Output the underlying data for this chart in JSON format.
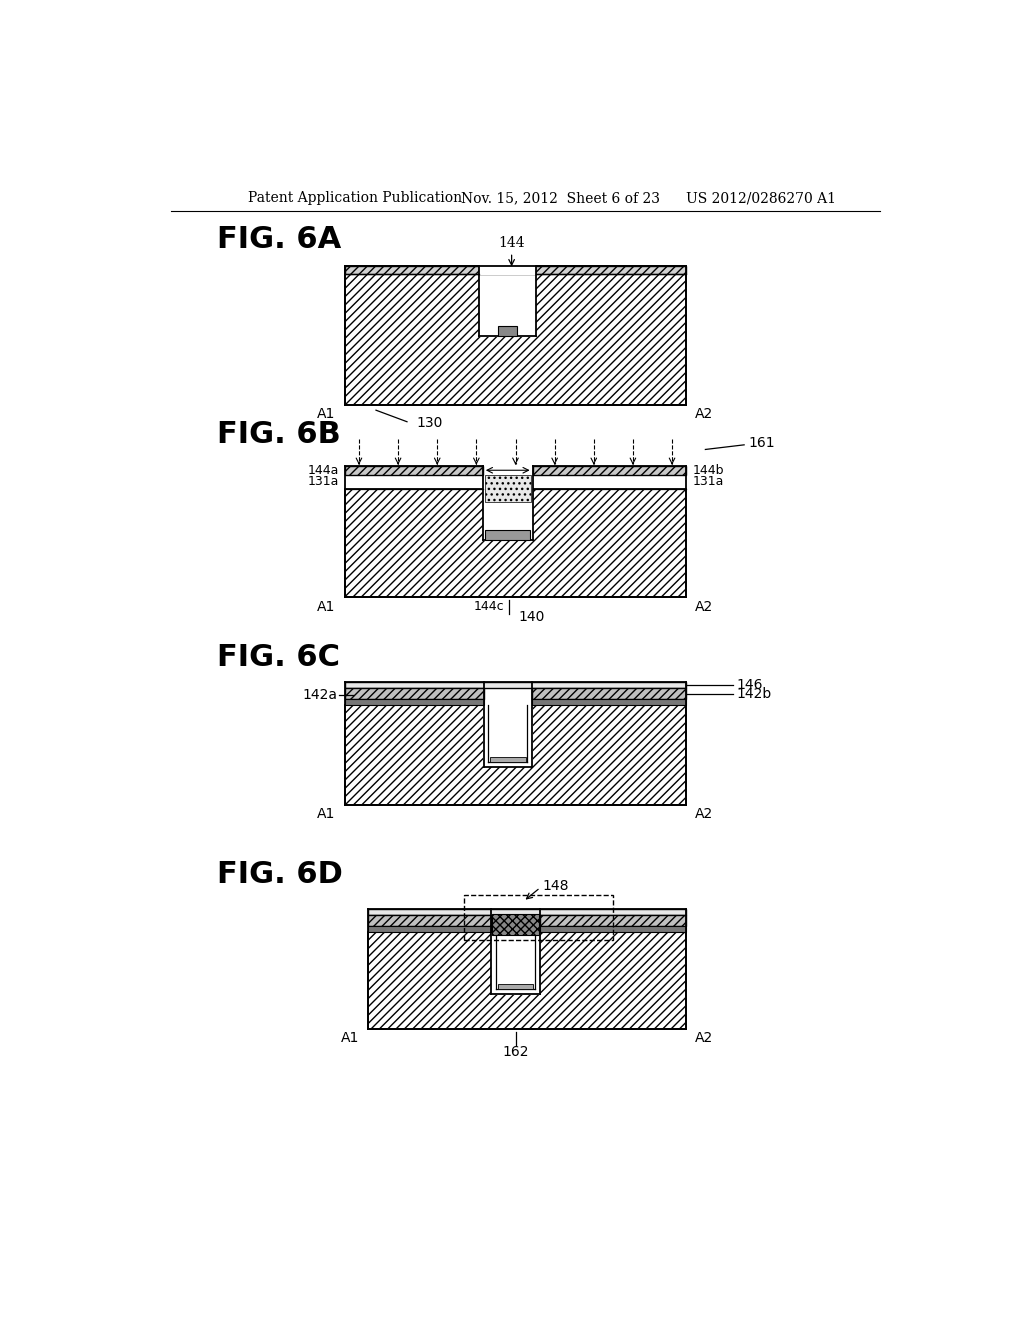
{
  "background_color": "#ffffff",
  "header_text": "Patent Application Publication",
  "header_date": "Nov. 15, 2012  Sheet 6 of 23",
  "header_patent": "US 2012/0286270 A1",
  "line_color": "#000000"
}
